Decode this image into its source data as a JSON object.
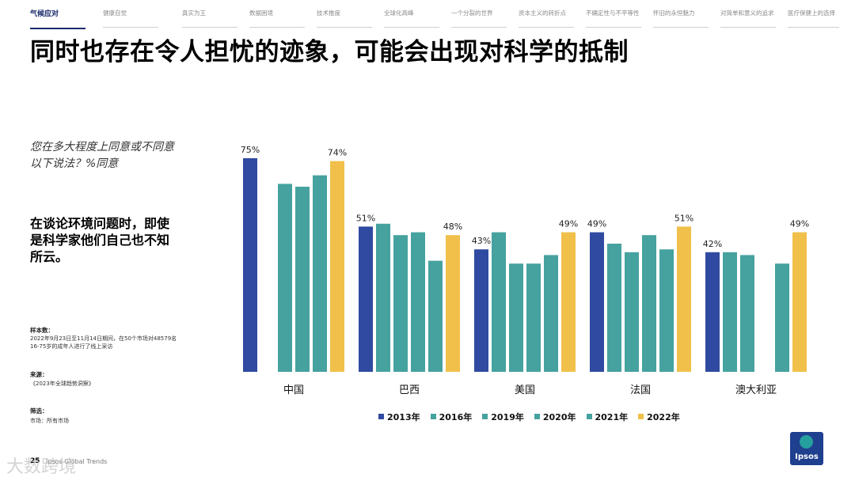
{
  "nav": {
    "tabs": [
      "气候应对",
      "健康自觉",
      "真实为王",
      "数据困境",
      "技术推度",
      "全球化高峰",
      "一个分裂的世界",
      "资本主义的转折点",
      "不确定性与不平等性",
      "怀旧的永恒魅力",
      "对简单和意义的追求",
      "医疗保健上的选择"
    ],
    "active_index": 0
  },
  "title": "同时也存在令人担忧的迹象，可能会出现对科学的抵制",
  "question": "您在多大程度上同意或不同意以下说法？%同意",
  "statement": "在谈论环境问题时，即使是科学家他们自己也不知所云。",
  "meta": {
    "sample_label": "样本数：",
    "sample_text": "2022年9月23日至11月14日期间，在50个市场对48579名16-75岁的成年人进行了线上采访",
    "source_label": "来源：",
    "source_text": "《2023年全球趋势洞察》",
    "filter_label": "筛选：",
    "filter_text": "市场：所有市场"
  },
  "page_number": "25",
  "footer_text": "Ipsos Global Trends",
  "watermark": "大数跨境",
  "logo_text": "Ipsos",
  "colors": {
    "navy": "#2f4aa0",
    "teal": "#45a29e",
    "gold": "#f0c04a",
    "active_tab": "#1a2a6c"
  },
  "chart_data": {
    "type": "bar",
    "categories": [
      "中国",
      "巴西",
      "美国",
      "法国",
      "澳大利亚"
    ],
    "ylim": [
      0,
      80
    ],
    "series": [
      {
        "name": "2013年",
        "color": "#2f4aa0",
        "values": [
          75,
          51,
          43,
          49,
          42
        ],
        "labels": [
          "75%",
          "51%",
          "43%",
          "49%",
          "42%"
        ]
      },
      {
        "name": "2016年",
        "color": "#45a29e",
        "values": [
          null,
          52,
          49,
          45,
          42
        ]
      },
      {
        "name": "2019年",
        "color": "#45a29e",
        "values": [
          66,
          48,
          38,
          42,
          41
        ]
      },
      {
        "name": "2020年",
        "color": "#45a29e",
        "values": [
          65,
          49,
          38,
          48,
          null
        ]
      },
      {
        "name": "2021年",
        "color": "#45a29e",
        "values": [
          69,
          39,
          41,
          43,
          38
        ]
      },
      {
        "name": "2022年",
        "color": "#f0c04a",
        "values": [
          74,
          48,
          49,
          51,
          49
        ],
        "labels": [
          "74%",
          "48%",
          "49%",
          "51%",
          "49%"
        ]
      }
    ]
  }
}
